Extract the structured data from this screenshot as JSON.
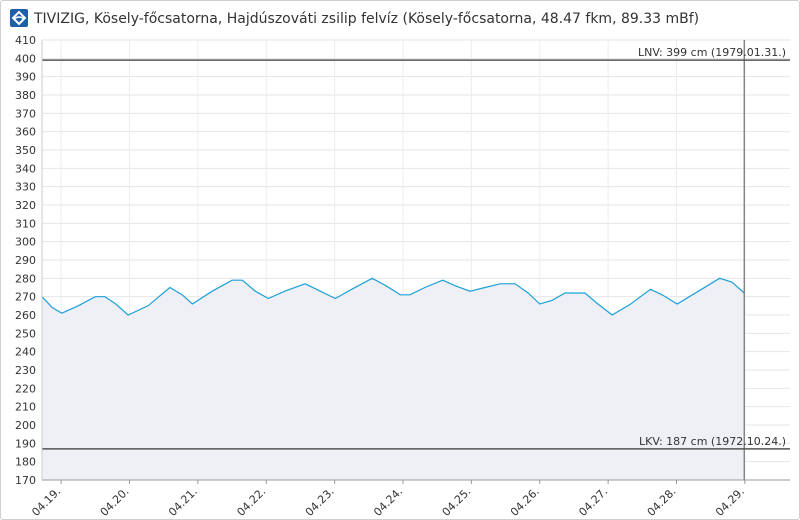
{
  "chart_data": {
    "type": "area",
    "title": "TIVIZIG, Kösely-főcsatorna, Hajdúszováti zsilip felvíz (Kösely-főcsatorna, 48.47 fkm, 89.33 mBf)",
    "x": [
      -0.28,
      -0.13,
      0.01,
      0.25,
      0.5,
      0.64,
      0.8,
      0.98,
      1.27,
      1.59,
      1.77,
      1.92,
      2.21,
      2.5,
      2.65,
      2.84,
      3.03,
      3.27,
      3.57,
      3.79,
      4.01,
      4.25,
      4.55,
      4.75,
      4.96,
      5.1,
      5.32,
      5.58,
      5.76,
      5.98,
      6.2,
      6.42,
      6.64,
      6.83,
      7.0,
      7.18,
      7.37,
      7.66,
      7.85,
      8.06,
      8.33,
      8.62,
      8.79,
      9.01,
      9.32,
      9.63,
      9.81,
      9.99
    ],
    "values": [
      270,
      264,
      261,
      265,
      270,
      270,
      266,
      260,
      265,
      275,
      271,
      266,
      273,
      279,
      279,
      273,
      269,
      273,
      277,
      273,
      269,
      274,
      280,
      276,
      271,
      271,
      275,
      279,
      276,
      273,
      275,
      277,
      277,
      272,
      266,
      268,
      272,
      272,
      266,
      260,
      266,
      274,
      271,
      266,
      273,
      280,
      278,
      272
    ],
    "color": "#1ea0d8",
    "fill": "#eef0f5",
    "xlim": [
      -0.28,
      10.66
    ],
    "xticks": [
      {
        "value": 0,
        "label": "04.19."
      },
      {
        "value": 1,
        "label": "04.20."
      },
      {
        "value": 2,
        "label": "04.21."
      },
      {
        "value": 3,
        "label": "04.22."
      },
      {
        "value": 4,
        "label": "04.23."
      },
      {
        "value": 5,
        "label": "04.24."
      },
      {
        "value": 6,
        "label": "04.25."
      },
      {
        "value": 7,
        "label": "04.26."
      },
      {
        "value": 8,
        "label": "04.27."
      },
      {
        "value": 9,
        "label": "04.28."
      },
      {
        "value": 10,
        "label": "04.29."
      }
    ],
    "ylim": [
      170,
      410
    ],
    "yticks": [
      170,
      180,
      190,
      200,
      210,
      220,
      230,
      240,
      250,
      260,
      270,
      280,
      290,
      300,
      310,
      320,
      330,
      340,
      350,
      360,
      370,
      380,
      390,
      400,
      410
    ],
    "grid": true,
    "reference_lines": [
      {
        "value": 399,
        "label": "LNV: 399 cm (1979.01.31.)"
      },
      {
        "value": 187,
        "label": "LKV: 187 cm (1972.10.24.)"
      }
    ]
  }
}
